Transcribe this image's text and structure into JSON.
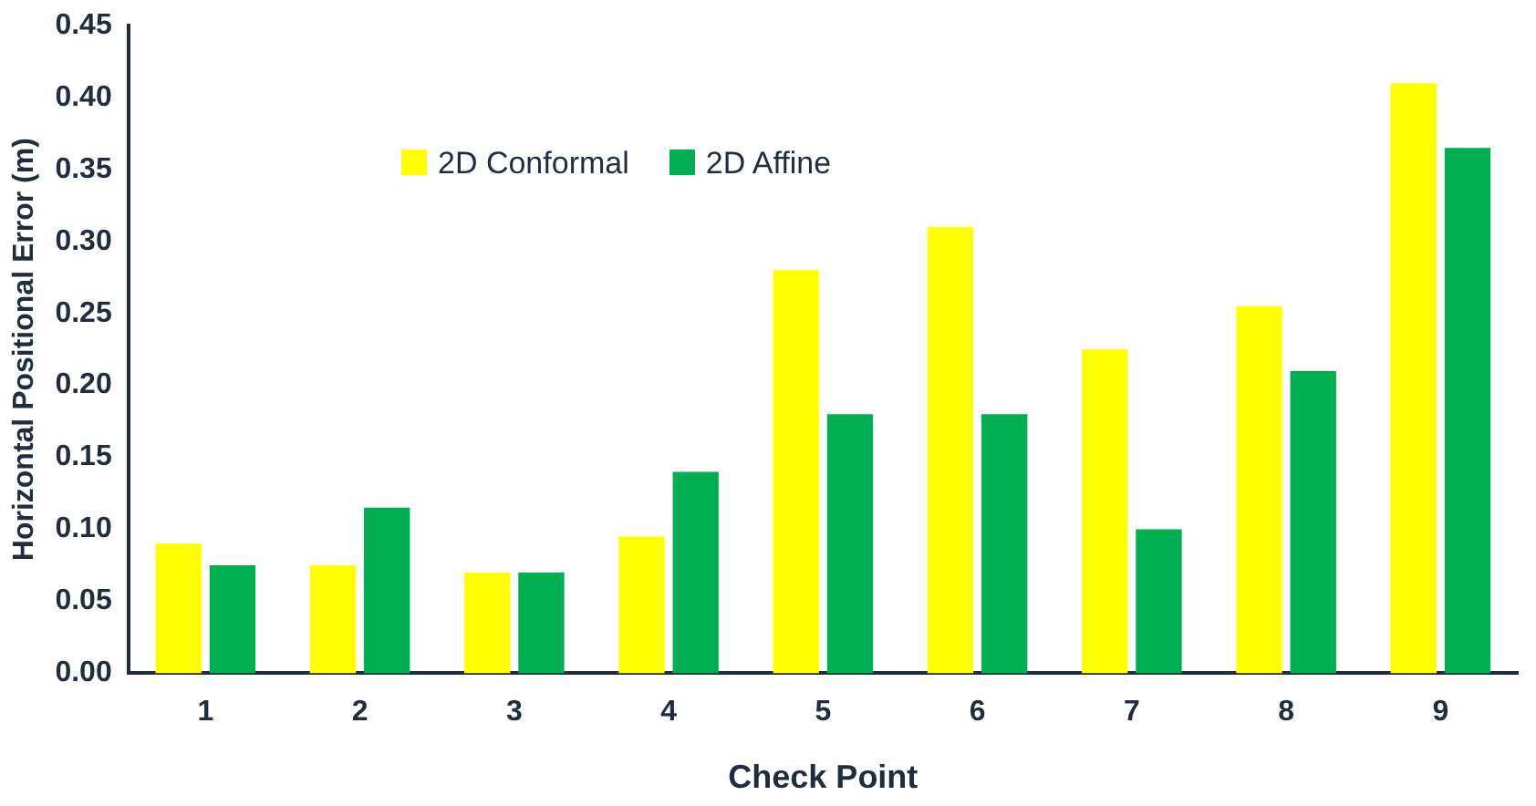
{
  "chart_data": {
    "type": "bar",
    "xlabel": "Check Point",
    "ylabel": "Horizontal Positional Error (m)",
    "categories": [
      "1",
      "2",
      "3",
      "4",
      "5",
      "6",
      "7",
      "8",
      "9"
    ],
    "series": [
      {
        "name": "2D Conformal",
        "color": "#ffff00",
        "values": [
          0.09,
          0.075,
          0.07,
          0.095,
          0.28,
          0.31,
          0.225,
          0.255,
          0.41
        ]
      },
      {
        "name": "2D Affine",
        "color": "#00b050",
        "values": [
          0.075,
          0.115,
          0.07,
          0.14,
          0.18,
          0.18,
          0.1,
          0.21,
          0.365
        ]
      }
    ],
    "ylim": [
      0,
      0.45
    ],
    "yticks": [
      {
        "value": 0,
        "label": "0.00"
      },
      0.05,
      {
        "value": 0.1,
        "label": "0.10"
      },
      0.15,
      {
        "value": 0.2,
        "label": "0.20"
      },
      0.25,
      {
        "value": 0.3,
        "label": "0.30"
      },
      0.35,
      {
        "value": 0.4,
        "label": "0.40"
      },
      0.45
    ],
    "grid": false,
    "legend": "top left"
  }
}
